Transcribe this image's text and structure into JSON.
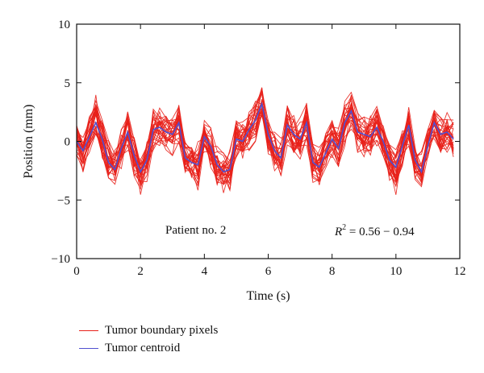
{
  "chart_data": {
    "type": "line",
    "xlabel": "Time (s)",
    "ylabel": "Position (mm)",
    "xlim": [
      0,
      12
    ],
    "ylim": [
      -10,
      10
    ],
    "xticks": [
      0,
      2,
      4,
      6,
      8,
      10,
      12
    ],
    "yticks": [
      -10,
      -5,
      0,
      5,
      10
    ],
    "grid": false,
    "legend_placement": "bottom-left",
    "annotations": {
      "patient": "Patient no. 2",
      "r2_symbol": "R",
      "r2_exponent": "2",
      "r2_range": " = 0.56 − 0.94"
    },
    "colors": {
      "boundary": "#e8201a",
      "centroid": "#5050d0"
    },
    "series": [
      {
        "name": "Tumor centroid",
        "color": "#5050d0",
        "x": [
          0,
          0.2,
          0.4,
          0.6,
          0.8,
          1.0,
          1.2,
          1.4,
          1.6,
          1.8,
          2.0,
          2.2,
          2.4,
          2.6,
          2.8,
          3.0,
          3.2,
          3.4,
          3.6,
          3.8,
          4.0,
          4.2,
          4.4,
          4.6,
          4.8,
          5.0,
          5.2,
          5.4,
          5.6,
          5.8,
          6.0,
          6.2,
          6.4,
          6.6,
          6.8,
          7.0,
          7.2,
          7.4,
          7.6,
          7.8,
          8.0,
          8.2,
          8.4,
          8.6,
          8.8,
          9.0,
          9.2,
          9.4,
          9.6,
          9.8,
          10.0,
          10.2,
          10.4,
          10.6,
          10.8,
          11.0,
          11.2,
          11.4,
          11.6,
          11.8
        ],
        "y": [
          0,
          -0.8,
          0.4,
          1.6,
          0.2,
          -1.8,
          -2.4,
          -0.6,
          0.8,
          -1.2,
          -2.6,
          -1.6,
          1.0,
          1.2,
          0.8,
          0.6,
          1.6,
          -1.4,
          -1.8,
          -2.0,
          0.4,
          -0.4,
          -2.0,
          -2.6,
          -2.4,
          0.2,
          0.0,
          1.0,
          1.8,
          3.2,
          0.6,
          -0.8,
          -1.4,
          1.4,
          0.6,
          0.2,
          1.6,
          -1.8,
          -2.2,
          -1.0,
          0.2,
          -0.6,
          1.6,
          2.6,
          0.8,
          0.6,
          0.4,
          1.2,
          0.0,
          -1.6,
          -2.2,
          -0.4,
          1.4,
          -1.6,
          -2.6,
          -0.4,
          1.6,
          0.6,
          0.8,
          0.2
        ]
      },
      {
        "name": "Tumor boundary pixels",
        "color": "#e8201a",
        "x": [
          0,
          0.2,
          0.4,
          0.6,
          0.8,
          1.0,
          1.2,
          1.4,
          1.6,
          1.8,
          2.0,
          2.2,
          2.4,
          2.6,
          2.8,
          3.0,
          3.2,
          3.4,
          3.6,
          3.8,
          4.0,
          4.2,
          4.4,
          4.6,
          4.8,
          5.0,
          5.2,
          5.4,
          5.6,
          5.8,
          6.0,
          6.2,
          6.4,
          6.6,
          6.8,
          7.0,
          7.2,
          7.4,
          7.6,
          7.8,
          8.0,
          8.2,
          8.4,
          8.6,
          8.8,
          9.0,
          9.2,
          9.4,
          9.6,
          9.8,
          10.0,
          10.2,
          10.4,
          10.6,
          10.8,
          11.0,
          11.2,
          11.4,
          11.6,
          11.8
        ],
        "y_min": [
          -1.6,
          -2.8,
          -1.2,
          -0.6,
          -1.8,
          -3.6,
          -4.2,
          -2.6,
          -0.8,
          -3.2,
          -4.6,
          -3.6,
          -0.8,
          -0.6,
          -1.2,
          -1.4,
          -0.4,
          -3.2,
          -3.8,
          -4.4,
          -1.6,
          -2.4,
          -4.0,
          -4.6,
          -4.4,
          -1.8,
          -2.0,
          -1.0,
          -0.2,
          1.0,
          -1.4,
          -2.8,
          -3.4,
          -0.6,
          -1.4,
          -1.8,
          -0.4,
          -3.8,
          -4.2,
          -3.0,
          -1.8,
          -2.6,
          -0.4,
          0.6,
          -1.2,
          -1.4,
          -1.6,
          -0.8,
          -2.0,
          -3.6,
          -4.8,
          -2.4,
          -0.6,
          -3.6,
          -4.6,
          -2.4,
          -0.4,
          -1.4,
          -1.2,
          -1.8
        ],
        "y_max": [
          1.6,
          0.8,
          2.4,
          4.8,
          2.2,
          0.2,
          -0.4,
          1.4,
          2.8,
          0.8,
          -0.6,
          0.4,
          3.0,
          3.2,
          2.8,
          2.6,
          3.6,
          0.6,
          0.2,
          0.0,
          2.4,
          1.6,
          0.0,
          -0.6,
          -0.4,
          2.2,
          2.0,
          3.0,
          3.8,
          5.2,
          2.6,
          1.2,
          0.6,
          3.4,
          2.6,
          2.2,
          3.6,
          0.2,
          -0.2,
          1.0,
          2.2,
          1.4,
          3.6,
          4.4,
          2.8,
          2.6,
          2.4,
          3.4,
          2.0,
          0.4,
          -0.2,
          1.6,
          3.4,
          0.4,
          -0.6,
          1.6,
          3.2,
          2.6,
          2.8,
          2.2
        ]
      }
    ]
  }
}
